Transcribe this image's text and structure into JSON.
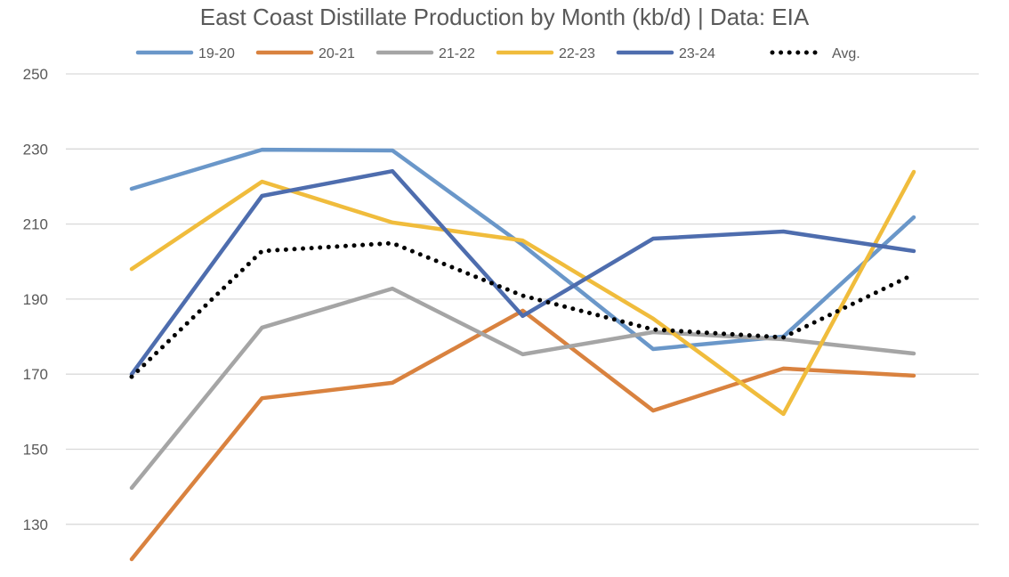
{
  "chart_data": {
    "type": "line",
    "title": "East Coast Distillate Production by Month (kb/d) | Data: EIA",
    "xlabel": "",
    "ylabel": "",
    "ylim": [
      116,
      250
    ],
    "yticks": [
      130,
      150,
      170,
      190,
      210,
      230,
      250
    ],
    "grid": true,
    "legend_position": "top",
    "x": [
      1,
      2,
      3,
      4,
      5,
      6,
      7
    ],
    "series": [
      {
        "name": "19-20",
        "color": "#6A97C9",
        "style": "solid",
        "values": [
          219.4,
          229.8,
          229.6,
          204.4,
          176.7,
          180.0,
          211.8
        ]
      },
      {
        "name": "20-21",
        "color": "#D9823F",
        "style": "solid",
        "values": [
          120.7,
          163.6,
          167.7,
          186.9,
          160.3,
          171.5,
          169.6
        ]
      },
      {
        "name": "21-22",
        "color": "#A5A5A5",
        "style": "solid",
        "values": [
          139.7,
          182.4,
          192.8,
          175.3,
          181.2,
          179.3,
          175.5
        ]
      },
      {
        "name": "22-23",
        "color": "#F0BC3C",
        "style": "solid",
        "values": [
          198.0,
          221.3,
          210.4,
          205.6,
          184.8,
          159.4,
          223.9
        ]
      },
      {
        "name": "23-24",
        "color": "#4E6DAE",
        "style": "solid",
        "values": [
          170.0,
          217.5,
          224.1,
          185.5,
          206.1,
          208.0,
          202.8
        ]
      },
      {
        "name": "Avg.",
        "color": "#000000",
        "style": "dotted",
        "values": [
          169.3,
          202.8,
          204.9,
          190.9,
          181.9,
          179.8,
          196.6
        ]
      }
    ]
  }
}
